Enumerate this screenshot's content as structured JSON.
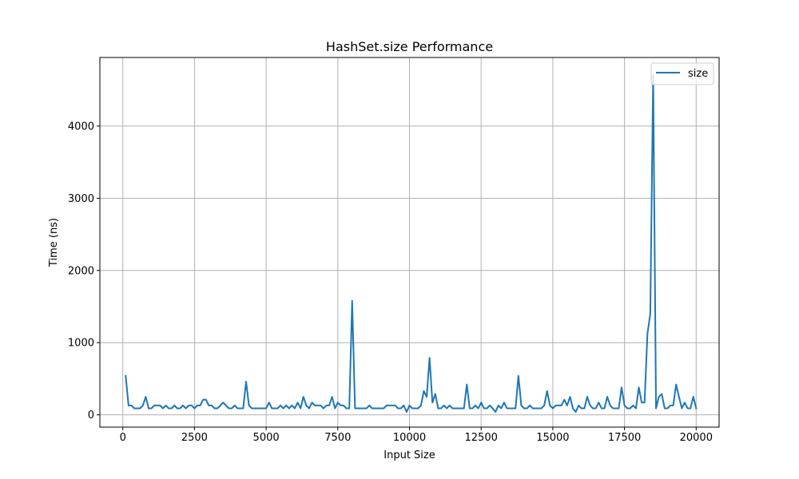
{
  "chart_data": {
    "type": "line",
    "title": "HashSet.size Performance",
    "xlabel": "Input Size",
    "ylabel": "Time (ns)",
    "xlim": [
      -800,
      20800
    ],
    "ylim": [
      -170,
      4950
    ],
    "x_ticks": [
      0,
      2500,
      5000,
      7500,
      10000,
      12500,
      15000,
      17500,
      20000
    ],
    "y_ticks": [
      0,
      1000,
      2000,
      3000,
      4000
    ],
    "grid": true,
    "legend": {
      "position": "top-right",
      "entries": [
        "size"
      ]
    },
    "colors": {
      "size": "#1f77b4",
      "grid": "#b0b0b0"
    },
    "series": [
      {
        "name": "size",
        "x": [
          100,
          200,
          300,
          400,
          500,
          600,
          700,
          800,
          900,
          1000,
          1100,
          1200,
          1300,
          1400,
          1500,
          1600,
          1700,
          1800,
          1900,
          2000,
          2100,
          2200,
          2300,
          2400,
          2500,
          2600,
          2700,
          2800,
          2900,
          3000,
          3100,
          3200,
          3300,
          3400,
          3500,
          3600,
          3700,
          3800,
          3900,
          4000,
          4100,
          4200,
          4300,
          4400,
          4500,
          4600,
          4700,
          4800,
          4900,
          5000,
          5100,
          5200,
          5300,
          5400,
          5500,
          5600,
          5700,
          5800,
          5900,
          6000,
          6100,
          6200,
          6300,
          6400,
          6500,
          6600,
          6700,
          6800,
          6900,
          7000,
          7100,
          7200,
          7300,
          7400,
          7500,
          7600,
          7700,
          7800,
          7900,
          8000,
          8100,
          8200,
          8300,
          8400,
          8500,
          8600,
          8700,
          8800,
          8900,
          9000,
          9100,
          9200,
          9300,
          9400,
          9500,
          9600,
          9700,
          9800,
          9900,
          10000,
          10100,
          10200,
          10300,
          10400,
          10500,
          10600,
          10700,
          10800,
          10900,
          11000,
          11100,
          11200,
          11300,
          11400,
          11500,
          11600,
          11700,
          11800,
          11900,
          12000,
          12100,
          12200,
          12300,
          12400,
          12500,
          12600,
          12700,
          12800,
          12900,
          13000,
          13100,
          13200,
          13300,
          13400,
          13500,
          13600,
          13700,
          13800,
          13900,
          14000,
          14100,
          14200,
          14300,
          14400,
          14500,
          14600,
          14700,
          14800,
          14900,
          15000,
          15100,
          15200,
          15300,
          15400,
          15500,
          15600,
          15700,
          15800,
          15900,
          16000,
          16100,
          16200,
          16300,
          16400,
          16500,
          16600,
          16700,
          16800,
          16900,
          17000,
          17100,
          17200,
          17300,
          17400,
          17500,
          17600,
          17700,
          17800,
          17900,
          18000,
          18100,
          18200,
          18300,
          18400,
          18500,
          18600,
          18700,
          18800,
          18900,
          19000,
          19100,
          19200,
          19300,
          19400,
          19500,
          19600,
          19700,
          19800,
          19900,
          20000
        ],
        "values": [
          540,
          130,
          130,
          90,
          90,
          90,
          130,
          250,
          90,
          90,
          130,
          130,
          130,
          90,
          130,
          90,
          90,
          130,
          90,
          90,
          130,
          90,
          130,
          130,
          90,
          130,
          130,
          210,
          210,
          130,
          130,
          90,
          90,
          130,
          170,
          130,
          90,
          90,
          130,
          90,
          90,
          90,
          460,
          130,
          90,
          90,
          90,
          90,
          90,
          90,
          170,
          90,
          90,
          90,
          130,
          90,
          130,
          90,
          130,
          90,
          170,
          90,
          250,
          130,
          90,
          170,
          130,
          130,
          130,
          90,
          130,
          130,
          250,
          90,
          170,
          130,
          130,
          90,
          90,
          1580,
          90,
          90,
          90,
          90,
          90,
          130,
          90,
          90,
          90,
          90,
          90,
          130,
          130,
          130,
          130,
          90,
          90,
          130,
          40,
          130,
          90,
          90,
          90,
          130,
          330,
          250,
          790,
          170,
          290,
          90,
          90,
          130,
          90,
          130,
          90,
          90,
          90,
          90,
          90,
          420,
          90,
          90,
          130,
          90,
          170,
          90,
          90,
          130,
          90,
          40,
          130,
          90,
          170,
          90,
          90,
          90,
          90,
          540,
          130,
          90,
          90,
          130,
          90,
          90,
          90,
          90,
          130,
          330,
          130,
          90,
          130,
          130,
          130,
          210,
          130,
          250,
          90,
          40,
          130,
          90,
          90,
          250,
          130,
          90,
          90,
          170,
          90,
          90,
          250,
          130,
          90,
          90,
          90,
          380,
          130,
          90,
          90,
          130,
          90,
          380,
          170,
          170,
          1120,
          1400,
          4710,
          90,
          250,
          290,
          90,
          90,
          130,
          130,
          420,
          250,
          90,
          170,
          90,
          90,
          250,
          90
        ]
      }
    ]
  }
}
